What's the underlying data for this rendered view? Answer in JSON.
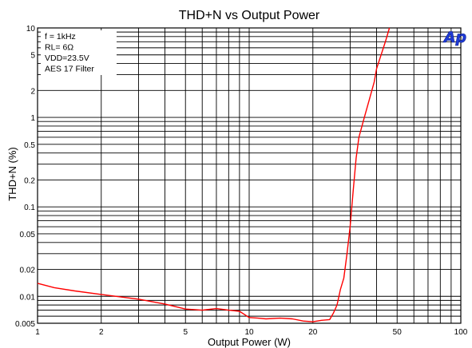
{
  "chart_data": {
    "type": "line",
    "title": "THD+N vs Output Power",
    "xlabel": "Output Power (W)",
    "ylabel": "THD+N (%)",
    "x_scale": "log",
    "y_scale": "log",
    "xlim": [
      1,
      100
    ],
    "ylim": [
      0.005,
      10
    ],
    "grid": true,
    "x_ticks": [
      1,
      2,
      5,
      10,
      20,
      50,
      100
    ],
    "x_tick_labels": [
      "1",
      "2",
      "5",
      "10",
      "20",
      "50",
      "100"
    ],
    "y_ticks": [
      0.005,
      0.01,
      0.02,
      0.05,
      0.1,
      0.2,
      0.5,
      1,
      2,
      5,
      10
    ],
    "y_tick_labels": [
      "0.005",
      "0.01",
      "0.02",
      "0.05",
      "0.1",
      "0.2",
      "0.5",
      "1",
      "2",
      "5",
      "10"
    ],
    "legend": {
      "placement": "top-left",
      "lines": [
        "f = 1kHz",
        "RL= 6Ω",
        "VDD=23.5V",
        "AES 17 Filter"
      ]
    },
    "logo": "Ap",
    "series": [
      {
        "color": "#ff0000",
        "x": [
          1,
          1.2,
          1.5,
          2,
          2.5,
          3,
          4,
          5,
          6,
          7,
          8,
          9,
          10,
          11,
          12,
          14,
          16,
          18,
          20,
          22,
          24,
          25,
          26,
          27,
          28,
          29,
          30,
          31,
          32,
          33,
          35,
          37,
          39,
          40,
          42,
          44,
          46
        ],
        "y": [
          0.014,
          0.0125,
          0.0115,
          0.0105,
          0.0098,
          0.0093,
          0.0082,
          0.0072,
          0.007,
          0.0073,
          0.007,
          0.0068,
          0.0058,
          0.0057,
          0.0056,
          0.0057,
          0.0056,
          0.0053,
          0.0052,
          0.0054,
          0.0055,
          0.0065,
          0.008,
          0.012,
          0.016,
          0.03,
          0.06,
          0.15,
          0.35,
          0.6,
          1.0,
          1.6,
          2.5,
          3.5,
          5.0,
          7.0,
          10.0
        ]
      }
    ]
  }
}
